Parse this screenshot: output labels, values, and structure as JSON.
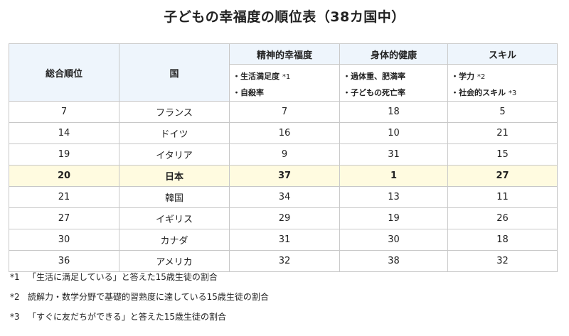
{
  "title": "子どもの幸福度の順位表（38カ国中）",
  "headers": {
    "rank": "総合順位",
    "country": "国",
    "mental": "精神的幸福度",
    "physical": "身体的健康",
    "skill": "スキル"
  },
  "subheaders": {
    "mental": [
      {
        "text": "・生活満足度",
        "mark": "*1"
      },
      {
        "text": "・自殺率",
        "mark": ""
      }
    ],
    "physical": [
      {
        "text": "・過体重、肥満率",
        "mark": ""
      },
      {
        "text": "・子どもの死亡率",
        "mark": ""
      }
    ],
    "skill": [
      {
        "text": "・学力",
        "mark": "*2"
      },
      {
        "text": "・社会的スキル",
        "mark": "*3"
      }
    ]
  },
  "rows": [
    {
      "rank": "7",
      "country": "フランス",
      "mental": "7",
      "physical": "18",
      "skill": "5",
      "highlight": false
    },
    {
      "rank": "14",
      "country": "ドイツ",
      "mental": "16",
      "physical": "10",
      "skill": "21",
      "highlight": false
    },
    {
      "rank": "19",
      "country": "イタリア",
      "mental": "9",
      "physical": "31",
      "skill": "15",
      "highlight": false
    },
    {
      "rank": "20",
      "country": "日本",
      "mental": "37",
      "physical": "1",
      "skill": "27",
      "highlight": true
    },
    {
      "rank": "21",
      "country": "韓国",
      "mental": "34",
      "physical": "13",
      "skill": "11",
      "highlight": false
    },
    {
      "rank": "27",
      "country": "イギリス",
      "mental": "29",
      "physical": "19",
      "skill": "26",
      "highlight": false
    },
    {
      "rank": "30",
      "country": "カナダ",
      "mental": "31",
      "physical": "30",
      "skill": "18",
      "highlight": false
    },
    {
      "rank": "36",
      "country": "アメリカ",
      "mental": "32",
      "physical": "38",
      "skill": "32",
      "highlight": false
    }
  ],
  "notes": [
    {
      "mark": "*1",
      "text": "「生活に満足している」と答えた15歳生徒の割合"
    },
    {
      "mark": "*2",
      "text": "読解力・数学分野で基礎的習熟度に達している15歳生徒の割合"
    },
    {
      "mark": "*3",
      "text": "「すぐに友だちができる」と答えた15歳生徒の割合"
    }
  ],
  "colors": {
    "header_bg": "#eef5fc",
    "highlight_bg": "#fffbe0",
    "border": "#c8c8c8"
  }
}
